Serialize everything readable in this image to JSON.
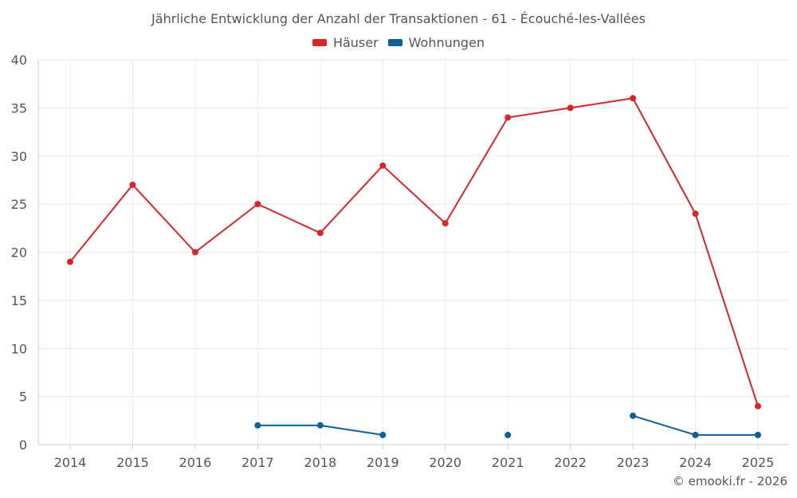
{
  "chart_data": {
    "type": "line",
    "title": "Jährliche Entwicklung der Anzahl der Transaktionen - 61 - Écouché-les-Vallées",
    "categories": [
      "2014",
      "2015",
      "2016",
      "2017",
      "2018",
      "2019",
      "2020",
      "2021",
      "2022",
      "2023",
      "2024",
      "2025"
    ],
    "ylim": [
      0,
      40
    ],
    "yticks": [
      0,
      5,
      10,
      15,
      20,
      25,
      30,
      35,
      40
    ],
    "xlabel": "",
    "ylabel": "",
    "legend_position": "top-center",
    "series": [
      {
        "name": "Häuser",
        "color": "#d7262b",
        "values": [
          19,
          27,
          20,
          25,
          22,
          29,
          23,
          34,
          35,
          36,
          24,
          4
        ]
      },
      {
        "name": "Wohnungen",
        "color": "#0f5f96",
        "values": [
          null,
          null,
          null,
          2,
          2,
          1,
          null,
          1,
          null,
          3,
          1,
          1
        ]
      }
    ]
  },
  "footer": {
    "copyright": "© emooki.fr - 2026"
  }
}
